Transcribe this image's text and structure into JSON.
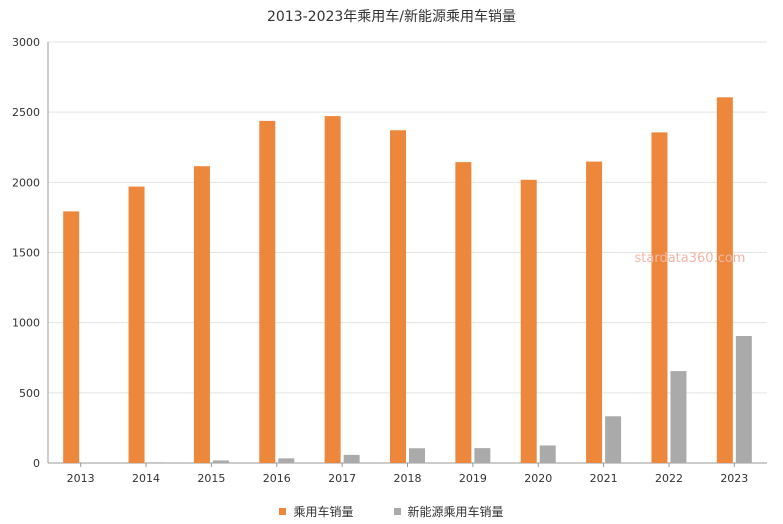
{
  "chart_data": {
    "type": "bar",
    "title": "2013-2023年乘用车/新能源乘用车销量",
    "categories": [
      "2013",
      "2014",
      "2015",
      "2016",
      "2017",
      "2018",
      "2019",
      "2020",
      "2021",
      "2022",
      "2023"
    ],
    "series": [
      {
        "name": "乘用车销量",
        "color": "#ed873c",
        "values": [
          1793,
          1970,
          2115,
          2438,
          2472,
          2371,
          2144,
          2018,
          2148,
          2356,
          2606
        ]
      },
      {
        "name": "新能源乘用车销量",
        "color": "#aaaaaa",
        "values": [
          1,
          5,
          18,
          33,
          58,
          105,
          106,
          125,
          333,
          655,
          905
        ]
      }
    ],
    "ylim": [
      0,
      3000
    ],
    "yticks": [
      0,
      500,
      1000,
      1500,
      2000,
      2500,
      3000
    ],
    "grid": true,
    "legend_position": "bottom",
    "watermark": "stardata360.com"
  }
}
